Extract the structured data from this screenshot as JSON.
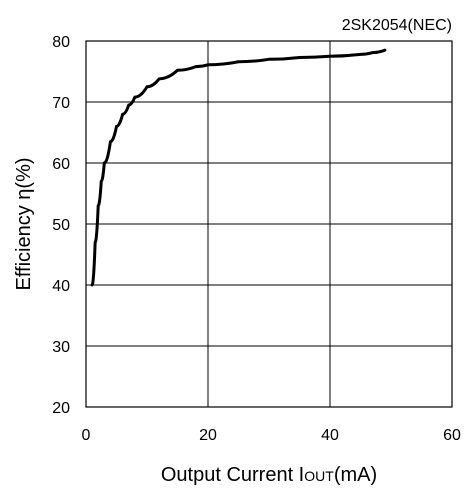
{
  "chart_data": {
    "type": "line",
    "title": "2SK2054(NEC)",
    "xlabel": "Output Current IOUT(mA)",
    "ylabel": "Efficiency η(%)",
    "xlim": [
      0,
      60
    ],
    "ylim": [
      20,
      80
    ],
    "x_ticks": [
      0,
      20,
      40,
      60
    ],
    "y_ticks": [
      20,
      30,
      40,
      50,
      60,
      70,
      80
    ],
    "grid": true,
    "series": [
      {
        "x": [
          1,
          1.5,
          2,
          2.5,
          3,
          4,
          5,
          6,
          7,
          8,
          10,
          12,
          15,
          18,
          20,
          25,
          30,
          35,
          40,
          45,
          47,
          49
        ],
        "y": [
          40,
          47,
          53,
          57,
          60,
          63.5,
          66,
          68,
          69.5,
          70.8,
          72.5,
          73.8,
          75.2,
          75.8,
          76.1,
          76.6,
          77,
          77.3,
          77.5,
          77.8,
          78.1,
          78.5
        ]
      }
    ]
  }
}
